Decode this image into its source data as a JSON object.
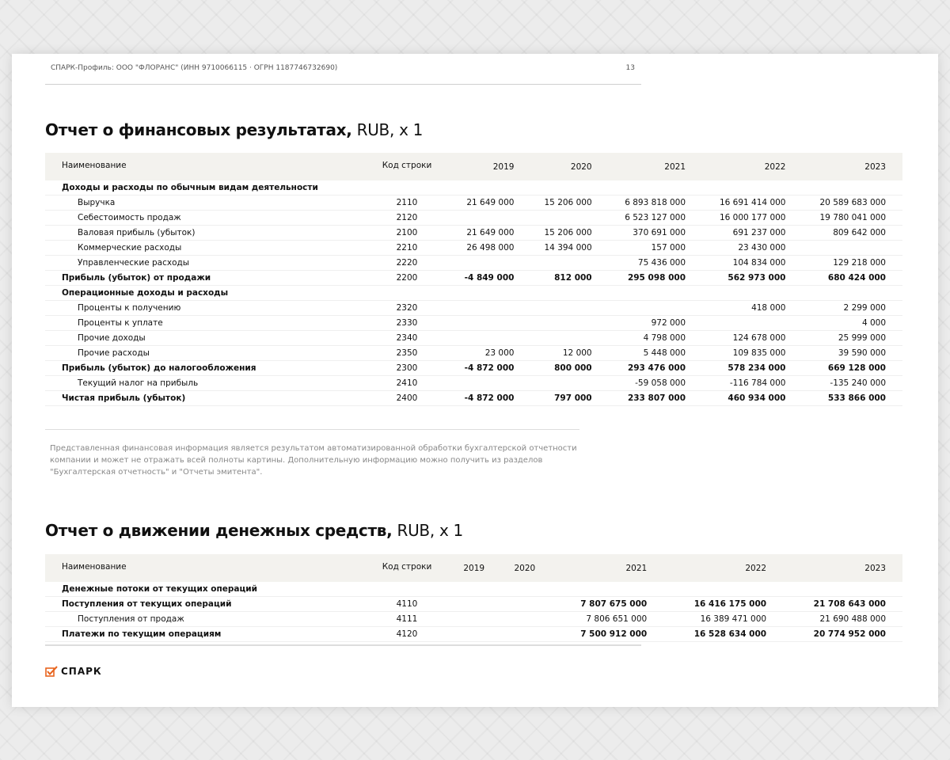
{
  "header": {
    "running_title": "СПАРК-Профиль: ООО \"ФЛОРАНС\" (ИНН 9710066115 · ОГРН 1187746732690)",
    "page_number": "13"
  },
  "columns": {
    "name": "Наименование",
    "code": "Код строки",
    "years": [
      "2019",
      "2020",
      "2021",
      "2022",
      "2023"
    ]
  },
  "income_statement": {
    "title": "Отчет о финансовых результатах,",
    "unit": "RUB, x 1",
    "rows": [
      {
        "label": "Доходы и расходы по обычным видам деятельности",
        "code": "",
        "values": [
          "",
          "",
          "",
          "",
          ""
        ],
        "bold": true,
        "indent": false
      },
      {
        "label": "Выручка",
        "code": "2110",
        "values": [
          "21 649 000",
          "15 206 000",
          "6 893 818 000",
          "16 691 414 000",
          "20 589 683 000"
        ],
        "bold": false,
        "indent": true
      },
      {
        "label": "Себестоимость продаж",
        "code": "2120",
        "values": [
          "",
          "",
          "6 523 127 000",
          "16 000 177 000",
          "19 780 041 000"
        ],
        "bold": false,
        "indent": true
      },
      {
        "label": "Валовая прибыль (убыток)",
        "code": "2100",
        "values": [
          "21 649 000",
          "15 206 000",
          "370 691 000",
          "691 237 000",
          "809 642 000"
        ],
        "bold": false,
        "indent": true
      },
      {
        "label": "Коммерческие расходы",
        "code": "2210",
        "values": [
          "26 498 000",
          "14 394 000",
          "157 000",
          "23 430 000",
          ""
        ],
        "bold": false,
        "indent": true
      },
      {
        "label": "Управленческие расходы",
        "code": "2220",
        "values": [
          "",
          "",
          "75 436 000",
          "104 834 000",
          "129 218 000"
        ],
        "bold": false,
        "indent": true
      },
      {
        "label": "Прибыль (убыток) от продажи",
        "code": "2200",
        "values": [
          "-4 849 000",
          "812 000",
          "295 098 000",
          "562 973 000",
          "680 424 000"
        ],
        "bold": true,
        "indent": false
      },
      {
        "label": "Операционные доходы и расходы",
        "code": "",
        "values": [
          "",
          "",
          "",
          "",
          ""
        ],
        "bold": true,
        "indent": false
      },
      {
        "label": "Проценты к получению",
        "code": "2320",
        "values": [
          "",
          "",
          "",
          "418 000",
          "2 299 000"
        ],
        "bold": false,
        "indent": true
      },
      {
        "label": "Проценты к уплате",
        "code": "2330",
        "values": [
          "",
          "",
          "972 000",
          "",
          "4 000"
        ],
        "bold": false,
        "indent": true
      },
      {
        "label": "Прочие доходы",
        "code": "2340",
        "values": [
          "",
          "",
          "4 798 000",
          "124 678 000",
          "25 999 000"
        ],
        "bold": false,
        "indent": true
      },
      {
        "label": "Прочие расходы",
        "code": "2350",
        "values": [
          "23 000",
          "12 000",
          "5 448 000",
          "109 835 000",
          "39 590 000"
        ],
        "bold": false,
        "indent": true
      },
      {
        "label": "Прибыль (убыток) до налогообложения",
        "code": "2300",
        "values": [
          "-4 872 000",
          "800 000",
          "293 476 000",
          "578 234 000",
          "669 128 000"
        ],
        "bold": true,
        "indent": false
      },
      {
        "label": "Текущий налог на прибыль",
        "code": "2410",
        "values": [
          "",
          "",
          "-59 058 000",
          "-116 784 000",
          "-135 240 000"
        ],
        "bold": false,
        "indent": true
      },
      {
        "label": "Чистая прибыль (убыток)",
        "code": "2400",
        "values": [
          "-4 872 000",
          "797 000",
          "233 807 000",
          "460 934 000",
          "533 866 000"
        ],
        "bold": true,
        "indent": false
      }
    ]
  },
  "disclaimer": "Представленная финансовая информация является результатом автоматизированной обработки бухгалтерской отчетности компании и может не отражать всей полноты картины. Дополнительную информацию можно получить из разделов \"Бухгалтерская отчетность\" и \"Отчеты эмитента\".",
  "cash_flow": {
    "title": "Отчет о движении денежных средств,",
    "unit": "RUB, x 1",
    "rows": [
      {
        "label": "Денежные потоки от текущих операций",
        "code": "",
        "values": [
          "",
          "",
          "",
          "",
          ""
        ],
        "bold": true,
        "indent": false
      },
      {
        "label": "Поступления от текущих операций",
        "code": "4110",
        "values": [
          "",
          "",
          "7 807 675 000",
          "16 416 175 000",
          "21 708 643 000"
        ],
        "bold": true,
        "indent": false
      },
      {
        "label": "Поступления от продаж",
        "code": "4111",
        "values": [
          "",
          "",
          "7 806 651 000",
          "16 389 471 000",
          "21 690 488 000"
        ],
        "bold": false,
        "indent": true
      },
      {
        "label": "Платежи по текущим операциям",
        "code": "4120",
        "values": [
          "",
          "",
          "7 500 912 000",
          "16 528 634 000",
          "20 774 952 000"
        ],
        "bold": true,
        "indent": false
      }
    ]
  },
  "logo": {
    "text": "СПАРК",
    "color": "#e8641e"
  }
}
